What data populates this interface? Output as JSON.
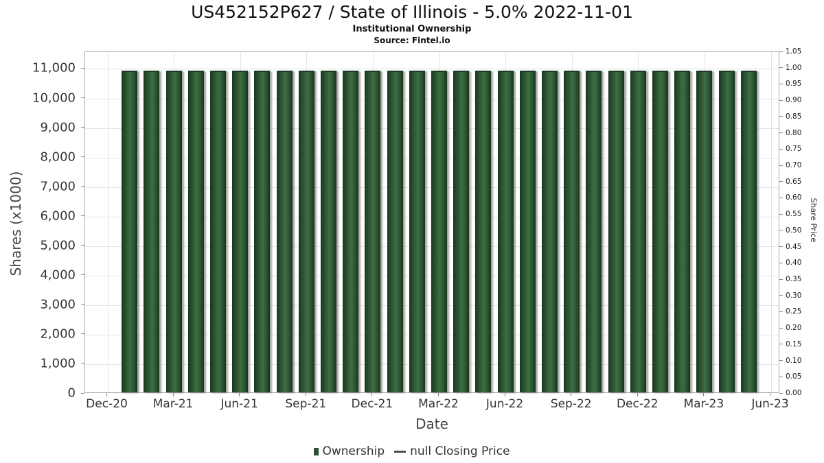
{
  "header": {
    "title": "US452152P627 / State of Illinois - 5.0% 2022-11-01",
    "subtitle": "Institutional Ownership",
    "source": "Source: Fintel.io"
  },
  "chart_data": {
    "type": "bar",
    "title": "US452152P627 / State of Illinois - 5.0% 2022-11-01",
    "subtitle": "Institutional Ownership",
    "source": "Source: Fintel.io",
    "xlabel": "Date",
    "ylabel_left": "Shares (x1000)",
    "ylabel_right": "Share Price",
    "grid": true,
    "legend_position": "bottom",
    "x_tick_labels": [
      "Dec-20",
      "Mar-21",
      "Jun-21",
      "Sep-21",
      "Dec-21",
      "Mar-22",
      "Jun-22",
      "Sep-22",
      "Dec-22",
      "Mar-23",
      "Jun-23"
    ],
    "x_tick_month_offsets": [
      0,
      3,
      6,
      9,
      12,
      15,
      18,
      21,
      24,
      27,
      30
    ],
    "x_axis_total_months": 30,
    "y_ticks_left": [
      "0",
      "1,000",
      "2,000",
      "3,000",
      "4,000",
      "5,000",
      "6,000",
      "7,000",
      "8,000",
      "9,000",
      "10,000",
      "11,000"
    ],
    "y_tick_step_left": 1000,
    "ylim_left": [
      0,
      11567
    ],
    "y_ticks_right": [
      "0.00",
      "0.05",
      "0.10",
      "0.15",
      "0.20",
      "0.25",
      "0.30",
      "0.35",
      "0.40",
      "0.45",
      "0.50",
      "0.55",
      "0.60",
      "0.65",
      "0.70",
      "0.75",
      "0.80",
      "0.85",
      "0.90",
      "0.95",
      "1.00",
      "1.05"
    ],
    "y_tick_step_right": 0.05,
    "ylim_right": [
      0,
      1.05
    ],
    "categories": [
      "Jan-21",
      "Feb-21",
      "Mar-21",
      "Apr-21",
      "May-21",
      "Jun-21",
      "Jul-21",
      "Aug-21",
      "Sep-21",
      "Oct-21",
      "Nov-21",
      "Dec-21",
      "Jan-22",
      "Feb-22",
      "Mar-22",
      "Apr-22",
      "May-22",
      "Jun-22",
      "Jul-22",
      "Aug-22",
      "Sep-22",
      "Oct-22",
      "Nov-22",
      "Dec-22",
      "Jan-23",
      "Feb-23",
      "Mar-23",
      "Apr-23",
      "May-23"
    ],
    "series": [
      {
        "name": "Ownership",
        "type": "bar",
        "color": "#2b5132",
        "values": [
          10900,
          10900,
          10900,
          10900,
          10900,
          10900,
          10900,
          10900,
          10900,
          10900,
          10900,
          10900,
          10900,
          10900,
          10900,
          10900,
          10900,
          10900,
          10900,
          10900,
          10900,
          10900,
          10900,
          10900,
          10900,
          10900,
          10900,
          10900,
          10900
        ]
      },
      {
        "name": "null Closing Price",
        "type": "line",
        "color": "#4d4d4d",
        "values": []
      }
    ],
    "legend": [
      {
        "label": "Ownership",
        "marker": "bar",
        "color": "#2b5132"
      },
      {
        "label": "null Closing Price",
        "marker": "line",
        "color": "#4d4d4d"
      }
    ]
  },
  "colors": {
    "bar_green_dark": "#19381f",
    "bar_green_light": "#3d6e44",
    "grid": "#e4e4e4",
    "plot_border": "#a8a8a8",
    "tick_text": "#333333",
    "background": "#ffffff"
  }
}
